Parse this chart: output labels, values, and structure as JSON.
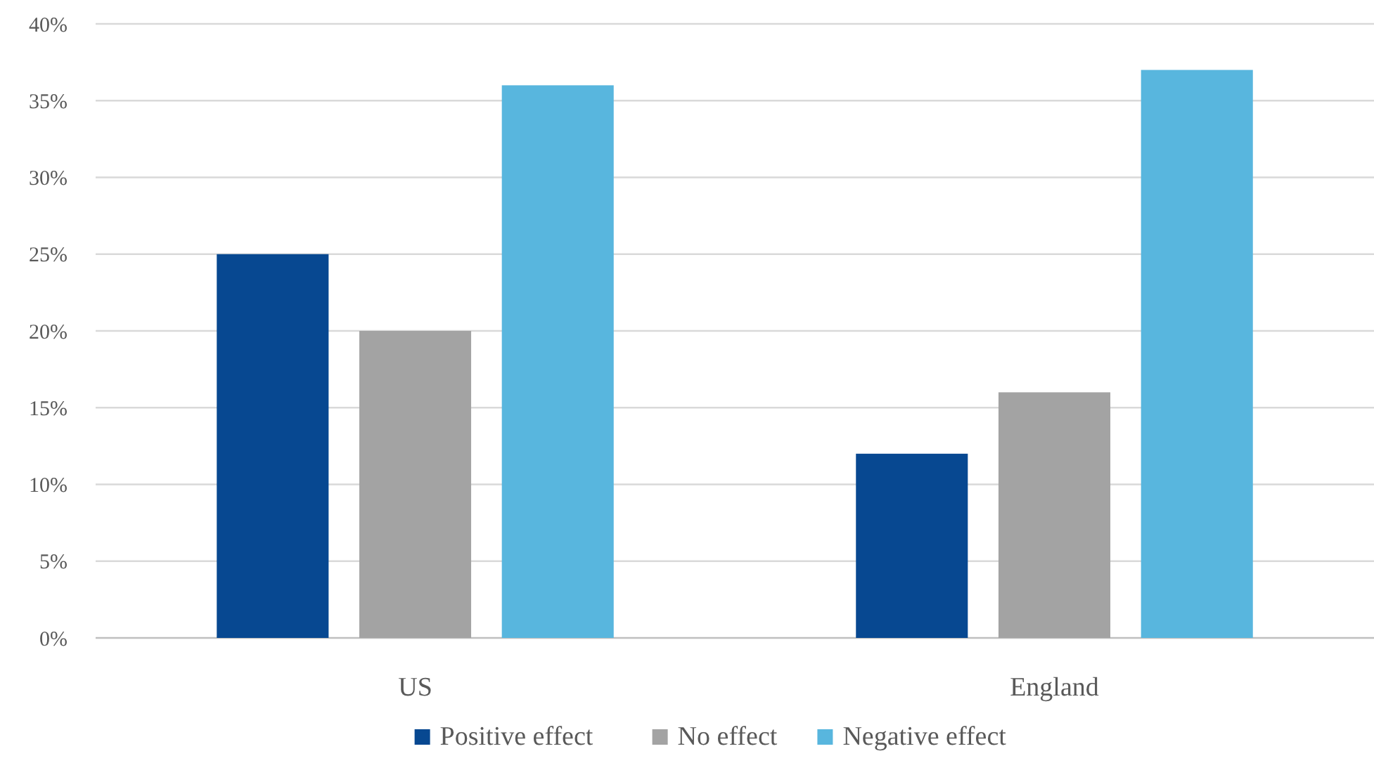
{
  "chart_data": {
    "type": "bar",
    "categories": [
      "US",
      "England"
    ],
    "series": [
      {
        "name": "Positive effect",
        "color": "#074891",
        "values": [
          25,
          12
        ]
      },
      {
        "name": "No effect",
        "color": "#a3a3a3",
        "values": [
          20,
          16
        ]
      },
      {
        "name": "Negative effect",
        "color": "#58b6de",
        "values": [
          36,
          37
        ]
      }
    ],
    "ylim": [
      0,
      40
    ],
    "yticks": [
      {
        "value": 0,
        "label": "0%"
      },
      {
        "value": 5,
        "label": "5%"
      },
      {
        "value": 10,
        "label": "10%"
      },
      {
        "value": 15,
        "label": "15%"
      },
      {
        "value": 20,
        "label": "20%"
      },
      {
        "value": 25,
        "label": "25%"
      },
      {
        "value": 30,
        "label": "30%"
      },
      {
        "value": 35,
        "label": "35%"
      },
      {
        "value": 40,
        "label": "40%"
      }
    ],
    "grid": "y",
    "legend": "bottom"
  }
}
